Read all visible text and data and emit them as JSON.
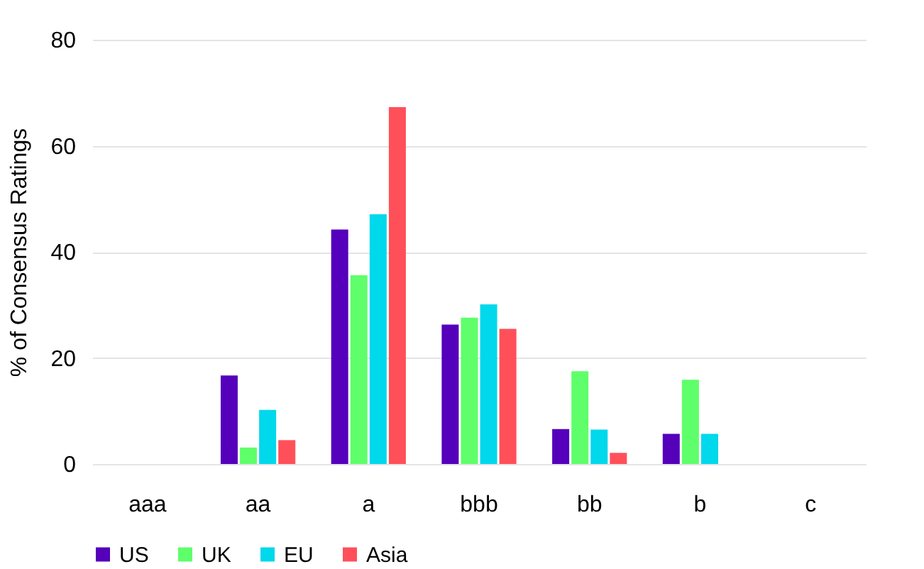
{
  "chart_data": {
    "type": "bar",
    "ylabel": "% of Consensus Ratings",
    "categories": [
      "aaa",
      "aa",
      "a",
      "bbb",
      "bb",
      "b",
      "c"
    ],
    "series": [
      {
        "name": "US",
        "color": "#5500bb",
        "values": [
          null,
          16.7,
          44.2,
          26.3,
          6.6,
          5.7,
          null
        ]
      },
      {
        "name": "UK",
        "color": "#5eff6a",
        "values": [
          null,
          3.1,
          35.6,
          27.6,
          17.5,
          15.9,
          null
        ]
      },
      {
        "name": "EU",
        "color": "#00d8ec",
        "values": [
          null,
          10.2,
          47.1,
          30.1,
          6.5,
          5.7,
          null
        ]
      },
      {
        "name": "Asia",
        "color": "#ff505a",
        "values": [
          null,
          4.5,
          67.3,
          25.5,
          2.1,
          null,
          null
        ]
      }
    ],
    "ylim": [
      0,
      80
    ],
    "yticks": [
      0,
      20,
      40,
      60,
      80
    ],
    "grid": "y",
    "legend": "bottom"
  }
}
